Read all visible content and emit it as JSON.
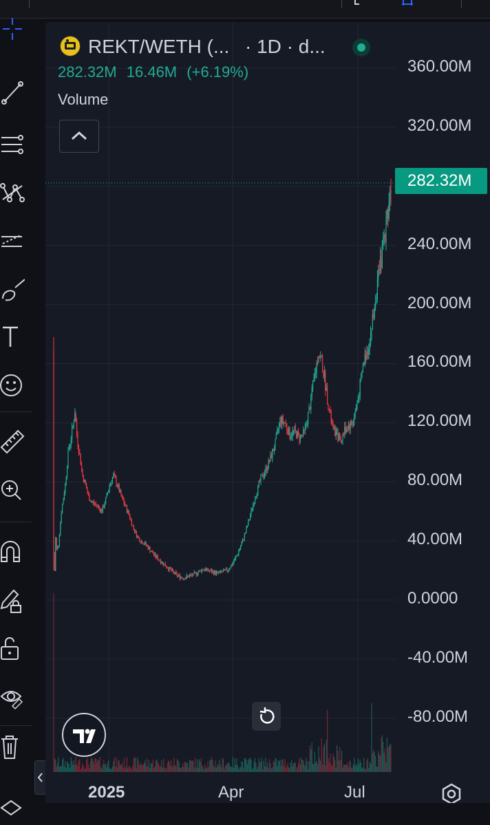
{
  "symbol": {
    "name": "REKT/WETH (...",
    "timeframe": "· 1D · d...",
    "status": "live"
  },
  "legend": {
    "ohlc": [
      "282.32M",
      "16.46M",
      "(+6.19%)"
    ],
    "volume_label": "Volume"
  },
  "last_price_badge": "282.32M",
  "colors": {
    "up": "#22ab94",
    "down": "#f23645",
    "badge": "#089981",
    "background": "#161a25",
    "grid": "#242733"
  },
  "y_axis": {
    "labels": [
      "360.00M",
      "320.00M",
      "240.00M",
      "200.00M",
      "160.00M",
      "120.00M",
      "80.00M",
      "40.00M",
      "0.0000",
      "-40.00M",
      "-80.00M"
    ]
  },
  "x_axis": {
    "labels": [
      "2025",
      "Apr",
      "Jul"
    ]
  },
  "toolbar_icons": [
    "crosshair-icon",
    "trend-line-icon",
    "fib-retracement-icon",
    "pattern-icon",
    "forecast-icon",
    "brush-icon",
    "text-icon",
    "emoji-icon",
    "ruler-icon",
    "zoom-in-icon",
    "magnet-icon",
    "lock-drawing-icon",
    "lock-icon",
    "eye-icon",
    "trash-icon",
    "layers-icon"
  ],
  "chart_data": {
    "type": "candlestick",
    "title": "REKT/WETH",
    "interval": "1D",
    "ylim": [
      -100,
      380
    ],
    "y_unit": "M",
    "last_price": 282.32,
    "change": 16.46,
    "change_pct": 6.19,
    "price_path": [
      [
        0,
        178
      ],
      [
        1,
        20
      ],
      [
        2,
        42
      ],
      [
        3,
        34
      ],
      [
        5,
        38
      ],
      [
        8,
        60
      ],
      [
        12,
        78
      ],
      [
        15,
        100
      ],
      [
        18,
        110
      ],
      [
        20,
        118
      ],
      [
        22,
        128
      ],
      [
        24,
        112
      ],
      [
        27,
        98
      ],
      [
        30,
        84
      ],
      [
        33,
        78
      ],
      [
        36,
        70
      ],
      [
        40,
        66
      ],
      [
        45,
        64
      ],
      [
        50,
        60
      ],
      [
        55,
        70
      ],
      [
        58,
        78
      ],
      [
        62,
        84
      ],
      [
        66,
        78
      ],
      [
        70,
        70
      ],
      [
        74,
        64
      ],
      [
        78,
        58
      ],
      [
        82,
        50
      ],
      [
        86,
        44
      ],
      [
        90,
        40
      ],
      [
        95,
        38
      ],
      [
        100,
        34
      ],
      [
        105,
        30
      ],
      [
        110,
        27
      ],
      [
        115,
        24
      ],
      [
        120,
        21
      ],
      [
        125,
        18
      ],
      [
        130,
        16
      ],
      [
        135,
        15
      ],
      [
        140,
        16
      ],
      [
        145,
        17
      ],
      [
        150,
        19
      ],
      [
        155,
        21
      ],
      [
        160,
        20
      ],
      [
        165,
        19
      ],
      [
        170,
        18
      ],
      [
        175,
        19
      ],
      [
        180,
        20
      ],
      [
        185,
        24
      ],
      [
        190,
        30
      ],
      [
        195,
        38
      ],
      [
        200,
        48
      ],
      [
        205,
        60
      ],
      [
        210,
        72
      ],
      [
        215,
        82
      ],
      [
        220,
        88
      ],
      [
        225,
        96
      ],
      [
        230,
        106
      ],
      [
        235,
        122
      ],
      [
        240,
        120
      ],
      [
        245,
        112
      ],
      [
        250,
        114
      ],
      [
        255,
        110
      ],
      [
        260,
        113
      ],
      [
        265,
        128
      ],
      [
        270,
        148
      ],
      [
        275,
        168
      ],
      [
        278,
        162
      ],
      [
        282,
        146
      ],
      [
        286,
        128
      ],
      [
        290,
        115
      ],
      [
        294,
        112
      ],
      [
        298,
        108
      ],
      [
        302,
        115
      ],
      [
        306,
        118
      ],
      [
        310,
        120
      ],
      [
        314,
        130
      ],
      [
        318,
        145
      ],
      [
        322,
        162
      ],
      [
        326,
        170
      ],
      [
        330,
        185
      ],
      [
        334,
        205
      ],
      [
        338,
        222
      ],
      [
        342,
        240
      ],
      [
        346,
        260
      ],
      [
        350,
        282
      ]
    ],
    "notable_extremes": {
      "first_candle_high": 178,
      "first_candle_low": 20,
      "peak_left": 129,
      "bottom": 12,
      "pre_breakout_high": 173,
      "dip_low": 99,
      "dip_wick_low": 125
    }
  }
}
